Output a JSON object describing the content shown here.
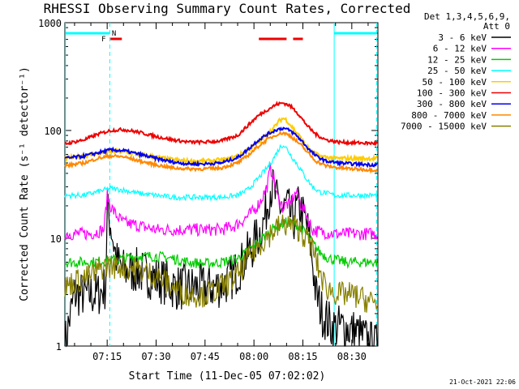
{
  "chart_data": {
    "type": "line",
    "title": "RHESSI Observing Summary Count Rates, Corrected",
    "xlabel": "Start Time (11-Dec-05 07:02:02)",
    "ylabel": "Corrected Count Rate (s⁻¹ detector⁻¹)",
    "ylim": [
      1,
      1000
    ],
    "y_scale": "log",
    "x_unit": "minutes after 07:00 UT",
    "xlim": [
      2.03,
      98
    ],
    "x_ticks": [
      {
        "t": 15,
        "label": "07:15"
      },
      {
        "t": 30,
        "label": "07:30"
      },
      {
        "t": 45,
        "label": "07:45"
      },
      {
        "t": 60,
        "label": "08:00"
      },
      {
        "t": 75,
        "label": "08:15"
      },
      {
        "t": 90,
        "label": "08:30"
      }
    ],
    "y_ticks": [
      {
        "v": 1,
        "label": "1"
      },
      {
        "v": 10,
        "label": "10"
      },
      {
        "v": 100,
        "label": "100"
      },
      {
        "v": 1000,
        "label": "1000"
      }
    ],
    "header_lines": [
      "Det 1,3,4,5,6,9,",
      "Att 0"
    ],
    "series": [
      {
        "name": "3 - 6 keV",
        "color": "#000000",
        "points": [
          [
            2,
            1
          ],
          [
            3,
            1.5
          ],
          [
            5,
            3
          ],
          [
            8,
            3
          ],
          [
            12,
            3
          ],
          [
            14.5,
            3.5
          ],
          [
            15,
            18
          ],
          [
            16,
            14
          ],
          [
            17,
            9
          ],
          [
            18,
            6
          ],
          [
            20,
            5
          ],
          [
            24,
            5
          ],
          [
            28,
            4.5
          ],
          [
            32,
            4
          ],
          [
            36,
            3.5
          ],
          [
            40,
            3.5
          ],
          [
            44,
            3.5
          ],
          [
            48,
            3.5
          ],
          [
            52,
            4
          ],
          [
            55,
            5
          ],
          [
            58,
            7
          ],
          [
            61,
            10
          ],
          [
            63,
            14
          ],
          [
            64,
            20
          ],
          [
            65,
            30
          ],
          [
            66,
            28
          ],
          [
            67,
            22
          ],
          [
            68,
            20
          ],
          [
            69,
            18
          ],
          [
            70,
            20
          ],
          [
            71,
            17
          ],
          [
            72,
            14
          ],
          [
            73,
            18
          ],
          [
            74,
            20
          ],
          [
            75,
            16
          ],
          [
            76,
            14
          ],
          [
            77,
            10
          ],
          [
            78,
            6
          ],
          [
            79,
            3
          ],
          [
            80,
            2.5
          ],
          [
            81,
            2
          ],
          [
            84,
            1.5
          ],
          [
            88,
            1.5
          ],
          [
            92,
            1.3
          ],
          [
            95,
            1.1
          ],
          [
            97,
            1
          ]
        ]
      },
      {
        "name": "6 - 12 keV",
        "color": "#ff00ff",
        "points": [
          [
            2,
            11
          ],
          [
            10,
            11
          ],
          [
            14,
            12
          ],
          [
            15,
            25
          ],
          [
            16,
            20
          ],
          [
            18,
            16
          ],
          [
            20,
            14
          ],
          [
            25,
            13
          ],
          [
            30,
            12
          ],
          [
            35,
            12
          ],
          [
            40,
            12
          ],
          [
            45,
            12
          ],
          [
            50,
            12
          ],
          [
            54,
            13
          ],
          [
            57,
            15
          ],
          [
            60,
            18
          ],
          [
            62,
            22
          ],
          [
            64,
            30
          ],
          [
            65,
            44
          ],
          [
            66,
            38
          ],
          [
            67,
            25
          ],
          [
            68,
            22
          ],
          [
            69,
            19
          ],
          [
            70,
            21
          ],
          [
            71,
            20
          ],
          [
            72,
            24
          ],
          [
            73,
            27
          ],
          [
            74,
            22
          ],
          [
            75,
            19
          ],
          [
            76,
            17
          ],
          [
            77,
            14
          ],
          [
            78,
            12
          ],
          [
            80,
            11.5
          ],
          [
            85,
            11
          ],
          [
            90,
            11
          ],
          [
            97,
            11
          ]
        ]
      },
      {
        "name": "12 - 25 keV",
        "color": "#00cc00",
        "points": [
          [
            2,
            6
          ],
          [
            10,
            6
          ],
          [
            15,
            6.2
          ],
          [
            20,
            6.5
          ],
          [
            25,
            6.8
          ],
          [
            30,
            6.8
          ],
          [
            35,
            6.5
          ],
          [
            40,
            6
          ],
          [
            45,
            5.8
          ],
          [
            50,
            6
          ],
          [
            55,
            6.5
          ],
          [
            58,
            7.5
          ],
          [
            61,
            9
          ],
          [
            64,
            11
          ],
          [
            67,
            13
          ],
          [
            70,
            14
          ],
          [
            73,
            13.5
          ],
          [
            76,
            11
          ],
          [
            78,
            9
          ],
          [
            80,
            7.5
          ],
          [
            83,
            6.5
          ],
          [
            88,
            6
          ],
          [
            97,
            6
          ]
        ]
      },
      {
        "name": "25 - 50 keV",
        "color": "#00ffff",
        "points": [
          [
            2,
            25
          ],
          [
            8,
            25
          ],
          [
            12,
            27
          ],
          [
            16,
            29
          ],
          [
            20,
            28
          ],
          [
            25,
            26
          ],
          [
            30,
            25
          ],
          [
            35,
            24
          ],
          [
            40,
            24
          ],
          [
            45,
            24
          ],
          [
            50,
            24
          ],
          [
            55,
            25
          ],
          [
            58,
            28
          ],
          [
            61,
            35
          ],
          [
            64,
            45
          ],
          [
            66,
            55
          ],
          [
            68,
            70
          ],
          [
            69,
            74
          ],
          [
            70,
            68
          ],
          [
            72,
            55
          ],
          [
            74,
            45
          ],
          [
            76,
            36
          ],
          [
            78,
            30
          ],
          [
            80,
            27
          ],
          [
            85,
            25
          ],
          [
            90,
            25
          ],
          [
            97,
            25
          ]
        ]
      },
      {
        "name": "50 - 100 keV",
        "color": "#ffcc00",
        "points": [
          [
            2,
            55
          ],
          [
            8,
            58
          ],
          [
            14,
            62
          ],
          [
            18,
            64
          ],
          [
            22,
            62
          ],
          [
            28,
            58
          ],
          [
            34,
            54
          ],
          [
            40,
            52
          ],
          [
            46,
            52
          ],
          [
            52,
            54
          ],
          [
            56,
            60
          ],
          [
            60,
            72
          ],
          [
            63,
            85
          ],
          [
            66,
            105
          ],
          [
            68,
            125
          ],
          [
            69,
            130
          ],
          [
            70,
            125
          ],
          [
            72,
            105
          ],
          [
            74,
            88
          ],
          [
            76,
            72
          ],
          [
            78,
            62
          ],
          [
            80,
            58
          ],
          [
            85,
            55
          ],
          [
            90,
            55
          ],
          [
            97,
            55
          ]
        ]
      },
      {
        "name": "100 - 300 keV",
        "color": "#ee0000",
        "points": [
          [
            2,
            75
          ],
          [
            8,
            82
          ],
          [
            12,
            92
          ],
          [
            16,
            100
          ],
          [
            20,
            102
          ],
          [
            25,
            96
          ],
          [
            30,
            88
          ],
          [
            35,
            82
          ],
          [
            40,
            78
          ],
          [
            45,
            78
          ],
          [
            50,
            80
          ],
          [
            55,
            90
          ],
          [
            58,
            110
          ],
          [
            61,
            135
          ],
          [
            64,
            155
          ],
          [
            67,
            175
          ],
          [
            69,
            180
          ],
          [
            71,
            170
          ],
          [
            73,
            150
          ],
          [
            75,
            125
          ],
          [
            77,
            105
          ],
          [
            79,
            92
          ],
          [
            82,
            82
          ],
          [
            86,
            78
          ],
          [
            90,
            77
          ],
          [
            97,
            76
          ]
        ]
      },
      {
        "name": "300 - 800 keV",
        "color": "#0000ee",
        "points": [
          [
            2,
            55
          ],
          [
            8,
            58
          ],
          [
            12,
            62
          ],
          [
            16,
            66
          ],
          [
            20,
            65
          ],
          [
            25,
            60
          ],
          [
            30,
            55
          ],
          [
            35,
            51
          ],
          [
            40,
            49
          ],
          [
            45,
            49
          ],
          [
            50,
            50
          ],
          [
            55,
            56
          ],
          [
            58,
            66
          ],
          [
            61,
            80
          ],
          [
            64,
            92
          ],
          [
            67,
            102
          ],
          [
            69,
            105
          ],
          [
            71,
            100
          ],
          [
            73,
            90
          ],
          [
            75,
            78
          ],
          [
            77,
            66
          ],
          [
            79,
            58
          ],
          [
            82,
            52
          ],
          [
            86,
            50
          ],
          [
            90,
            49
          ],
          [
            97,
            48
          ]
        ]
      },
      {
        "name": "800 - 7000 keV",
        "color": "#ff8800",
        "points": [
          [
            2,
            47
          ],
          [
            8,
            50
          ],
          [
            12,
            55
          ],
          [
            16,
            58
          ],
          [
            20,
            57
          ],
          [
            25,
            52
          ],
          [
            30,
            48
          ],
          [
            35,
            45
          ],
          [
            40,
            44
          ],
          [
            45,
            44
          ],
          [
            50,
            45
          ],
          [
            55,
            50
          ],
          [
            58,
            58
          ],
          [
            61,
            70
          ],
          [
            64,
            82
          ],
          [
            67,
            92
          ],
          [
            69,
            95
          ],
          [
            71,
            90
          ],
          [
            73,
            80
          ],
          [
            75,
            70
          ],
          [
            77,
            60
          ],
          [
            79,
            52
          ],
          [
            82,
            47
          ],
          [
            86,
            45
          ],
          [
            90,
            44
          ],
          [
            97,
            43
          ]
        ]
      },
      {
        "name": "7000 - 15000 keV",
        "color": "#888000",
        "points": [
          [
            2,
            3.5
          ],
          [
            5,
            4
          ],
          [
            8,
            4.2
          ],
          [
            10,
            4.5
          ],
          [
            12,
            5
          ],
          [
            14,
            5.5
          ],
          [
            15,
            5.5
          ],
          [
            20,
            5.5
          ],
          [
            25,
            5
          ],
          [
            30,
            4.5
          ],
          [
            35,
            3.5
          ],
          [
            40,
            3
          ],
          [
            45,
            3
          ],
          [
            50,
            3.5
          ],
          [
            53,
            4
          ],
          [
            56,
            5
          ],
          [
            59,
            7
          ],
          [
            62,
            9
          ],
          [
            65,
            11
          ],
          [
            68,
            13
          ],
          [
            70,
            13.5
          ],
          [
            72,
            13
          ],
          [
            74,
            12
          ],
          [
            76,
            10
          ],
          [
            78,
            8
          ],
          [
            80,
            5
          ],
          [
            82,
            3.5
          ],
          [
            86,
            3
          ],
          [
            90,
            3
          ],
          [
            97,
            2.5
          ]
        ]
      }
    ],
    "annotations": {
      "top_left_flags": [
        "F",
        "N"
      ]
    }
  },
  "footer": {
    "timestamp": "21-Oct-2021 22:06"
  }
}
